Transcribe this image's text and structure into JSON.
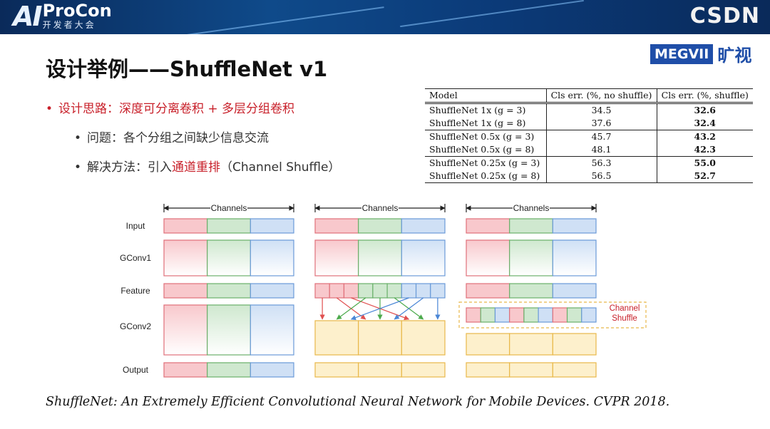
{
  "header": {
    "logo_ai": "AI",
    "logo_procon": "ProCon",
    "logo_procon_sub": "开发者大会",
    "logo_csdn": "CSDN"
  },
  "slide": {
    "title": "设计举例——ShuffleNet v1",
    "brand_box": "MEGVII",
    "brand_cn": "旷视"
  },
  "bullets": {
    "b1": "设计思路：深度可分离卷积 + 多层分组卷积",
    "b2": "问题：各个分组之间缺少信息交流",
    "b3_prefix": "解决方法：引入",
    "b3_highlight": "通道重排",
    "b3_suffix": "（Channel Shuffle）"
  },
  "table": {
    "headers": [
      "Model",
      "Cls err. (%, no shuffle)",
      "Cls err. (%, shuffle)"
    ],
    "rows": [
      {
        "model": "ShuffleNet 1x (g = 3)",
        "no_shuffle": "34.5",
        "shuffle": "32.6"
      },
      {
        "model": "ShuffleNet 1x (g = 8)",
        "no_shuffle": "37.6",
        "shuffle": "32.4"
      },
      {
        "model": "ShuffleNet 0.5x (g = 3)",
        "no_shuffle": "45.7",
        "shuffle": "43.2"
      },
      {
        "model": "ShuffleNet 0.5x (g = 8)",
        "no_shuffle": "48.1",
        "shuffle": "42.3"
      },
      {
        "model": "ShuffleNet 0.25x (g = 3)",
        "no_shuffle": "56.3",
        "shuffle": "55.0"
      },
      {
        "model": "ShuffleNet 0.25x (g = 8)",
        "no_shuffle": "56.5",
        "shuffle": "52.7"
      }
    ]
  },
  "diagram": {
    "row_labels": [
      "Input",
      "GConv1",
      "Feature",
      "GConv2",
      "Output"
    ],
    "channels_label": "Channels",
    "shuffle_label_line1": "Channel",
    "shuffle_label_line2": "Shuffle",
    "colors": {
      "red_fill": "#f8c8cc",
      "red_stroke": "#e0707a",
      "green_fill": "#cfe8cf",
      "green_stroke": "#6ab06a",
      "blue_fill": "#cfe0f5",
      "blue_stroke": "#6a9ad8",
      "yellow_fill": "#fdf0cc",
      "yellow_stroke": "#e8b84a"
    }
  },
  "reference": "ShuffleNet: An Extremely Efficient Convolutional Neural Network for Mobile Devices. CVPR 2018."
}
